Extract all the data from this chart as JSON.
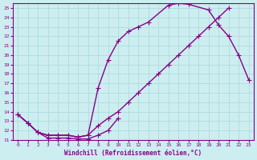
{
  "title": "",
  "xlabel": "Windchill (Refroidissement éolien,°C)",
  "ylabel": "",
  "bg_color": "#cdeef0",
  "line_color": "#880088",
  "marker": "+",
  "linewidth": 1.0,
  "markersize": 4,
  "xlim": [
    -0.5,
    23.5
  ],
  "ylim": [
    11,
    25.5
  ],
  "xticks": [
    0,
    1,
    2,
    3,
    4,
    5,
    6,
    7,
    8,
    9,
    10,
    11,
    12,
    13,
    14,
    15,
    16,
    17,
    18,
    19,
    20,
    21,
    22,
    23
  ],
  "yticks": [
    11,
    12,
    13,
    14,
    15,
    16,
    17,
    18,
    19,
    20,
    21,
    22,
    23,
    24,
    25
  ],
  "grid_color": "#a8d8d8",
  "curve1_x": [
    0,
    1,
    2,
    3,
    4,
    5,
    6,
    7,
    8,
    9,
    10
  ],
  "curve1_y": [
    13.7,
    12.8,
    11.8,
    11.2,
    11.2,
    11.2,
    11.1,
    11.1,
    11.5,
    12.0,
    13.3
  ],
  "curve2_x": [
    0,
    1,
    2,
    3,
    4,
    5,
    6,
    7,
    8,
    9,
    10,
    11,
    12,
    13,
    14,
    15,
    16,
    17,
    18,
    19,
    20,
    21
  ],
  "curve2_y": [
    13.7,
    12.8,
    11.8,
    11.5,
    11.5,
    11.5,
    11.3,
    11.5,
    12.5,
    13.3,
    14.0,
    15.0,
    16.0,
    17.0,
    18.0,
    19.0,
    20.0,
    21.0,
    22.0,
    23.0,
    24.0,
    25.0
  ],
  "curve3_x": [
    0,
    1,
    2,
    3,
    4,
    5,
    6,
    7,
    8,
    9,
    10,
    11,
    12,
    13,
    15,
    16,
    17,
    19,
    20,
    21,
    22,
    23
  ],
  "curve3_y": [
    13.7,
    12.8,
    11.8,
    11.5,
    11.5,
    11.5,
    11.3,
    11.5,
    16.5,
    19.5,
    21.5,
    22.5,
    23.0,
    23.5,
    25.3,
    25.5,
    25.4,
    24.8,
    23.2,
    22.0,
    20.0,
    17.4
  ]
}
